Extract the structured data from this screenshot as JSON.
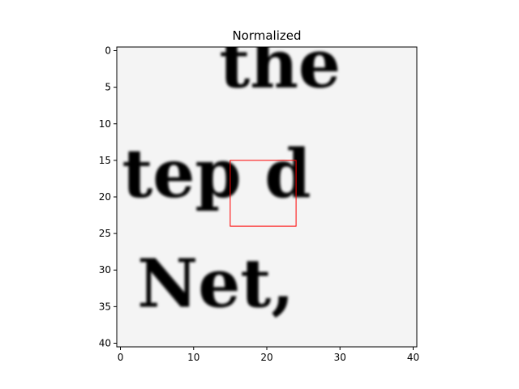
{
  "chart_data": {
    "type": "heatmap",
    "title": "Normalized",
    "xlabel": "",
    "ylabel": "",
    "xlim": [
      -0.5,
      40.5
    ],
    "ylim": [
      40.5,
      -0.5
    ],
    "xticks": [
      0,
      10,
      20,
      30,
      40
    ],
    "yticks": [
      0,
      5,
      10,
      15,
      20,
      25,
      30,
      35,
      40
    ],
    "xtick_labels": [
      "0",
      "10",
      "20",
      "30",
      "40"
    ],
    "ytick_labels": [
      "0",
      "5",
      "10",
      "15",
      "20",
      "25",
      "30",
      "35",
      "40"
    ],
    "colormap": "gray",
    "grid": false,
    "image_text_lines": [
      {
        "text": "the",
        "row": 5
      },
      {
        "text": "tep d",
        "row": 20
      },
      {
        "text": "Net,",
        "row": 35
      }
    ],
    "highlight_box": {
      "x0": 15,
      "y0": 15,
      "x1": 24,
      "y1": 24,
      "color": "#ff0000"
    }
  }
}
